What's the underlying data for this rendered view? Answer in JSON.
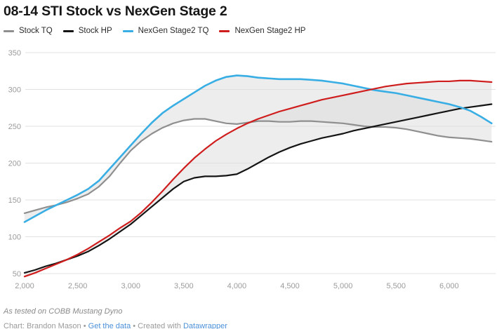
{
  "chart_data": {
    "type": "line",
    "title": "08-14 STI Stock vs NexGen Stage 2",
    "legend_position": "top",
    "grid": "horizontal",
    "x_range": [
      2000,
      6400
    ],
    "y_range": [
      50,
      350
    ],
    "x_ticks": [
      {
        "v": 2000,
        "label": "2,000"
      },
      {
        "v": 2500,
        "label": "2,500"
      },
      {
        "v": 3000,
        "label": "3,000"
      },
      {
        "v": 3500,
        "label": "3,500"
      },
      {
        "v": 4000,
        "label": "4,000"
      },
      {
        "v": 4500,
        "label": "4,500"
      },
      {
        "v": 5000,
        "label": "5,000"
      },
      {
        "v": 5500,
        "label": "5,500"
      },
      {
        "v": 6000,
        "label": "6,000"
      }
    ],
    "y_ticks": [
      {
        "v": 50,
        "label": "50"
      },
      {
        "v": 100,
        "label": "100"
      },
      {
        "v": 150,
        "label": "150"
      },
      {
        "v": 200,
        "label": "200"
      },
      {
        "v": 250,
        "label": "250"
      },
      {
        "v": 300,
        "label": "300"
      },
      {
        "v": 350,
        "label": "350"
      }
    ],
    "x": [
      2000,
      2100,
      2200,
      2300,
      2400,
      2500,
      2600,
      2700,
      2800,
      2900,
      3000,
      3100,
      3200,
      3300,
      3400,
      3500,
      3600,
      3700,
      3800,
      3900,
      4000,
      4100,
      4200,
      4300,
      4400,
      4500,
      4600,
      4700,
      4800,
      4900,
      5000,
      5100,
      5200,
      5300,
      5400,
      5500,
      5600,
      5700,
      5800,
      5900,
      6000,
      6100,
      6200,
      6300,
      6400
    ],
    "series": [
      {
        "name": "Stock TQ",
        "color": "#8f8f8f",
        "values": [
          132,
          136,
          140,
          143,
          147,
          152,
          158,
          168,
          182,
          200,
          217,
          230,
          240,
          248,
          254,
          258,
          260,
          260,
          257,
          254,
          253,
          255,
          257,
          257,
          256,
          256,
          257,
          257,
          256,
          255,
          254,
          252,
          250,
          249,
          249,
          248,
          246,
          243,
          240,
          237,
          235,
          234,
          233,
          231,
          229
        ]
      },
      {
        "name": "Stock HP",
        "color": "#141414",
        "values": [
          51,
          55,
          60,
          64,
          69,
          74,
          80,
          88,
          97,
          107,
          117,
          129,
          141,
          153,
          165,
          175,
          180,
          182,
          182,
          183,
          185,
          192,
          200,
          208,
          215,
          221,
          226,
          230,
          234,
          237,
          240,
          244,
          247,
          250,
          253,
          256,
          259,
          262,
          265,
          268,
          271,
          274,
          276,
          278,
          280
        ]
      },
      {
        "name": "NexGen Stage2 TQ",
        "color": "#38aee4",
        "values": [
          120,
          128,
          136,
          143,
          150,
          157,
          165,
          176,
          192,
          208,
          224,
          240,
          255,
          268,
          278,
          287,
          296,
          305,
          312,
          317,
          319,
          318,
          316,
          315,
          314,
          314,
          314,
          313,
          312,
          310,
          308,
          305,
          302,
          299,
          297,
          295,
          292,
          289,
          286,
          283,
          280,
          276,
          271,
          263,
          254
        ]
      },
      {
        "name": "NexGen Stage2 HP",
        "color": "#cf1d1d",
        "values": [
          46,
          51,
          57,
          63,
          69,
          76,
          84,
          93,
          102,
          112,
          121,
          133,
          147,
          162,
          178,
          193,
          207,
          219,
          230,
          239,
          247,
          254,
          260,
          265,
          270,
          274,
          278,
          282,
          286,
          289,
          292,
          295,
          298,
          301,
          304,
          306,
          308,
          309,
          310,
          311,
          311,
          312,
          312,
          311,
          310
        ]
      }
    ],
    "bands": [
      {
        "upper": 2,
        "lower": 0
      },
      {
        "upper": 3,
        "lower": 1
      }
    ],
    "band_color": "#dcdcdc"
  },
  "footer": {
    "note": "As tested on COBB Mustang Dyno",
    "attribution_parts": [
      {
        "text": "Chart: Brandon Mason • ",
        "link": false
      },
      {
        "text": "Get the data",
        "link": true
      },
      {
        "text": " • Created with ",
        "link": false
      },
      {
        "text": "Datawrapper",
        "link": true
      }
    ]
  }
}
